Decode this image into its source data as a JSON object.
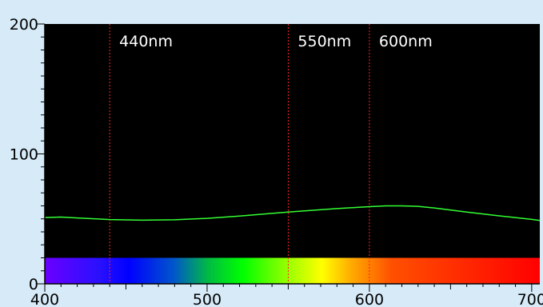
{
  "chart_data": {
    "type": "line",
    "title": "",
    "xlabel": "",
    "ylabel": "",
    "xlim": [
      400,
      705
    ],
    "ylim": [
      0,
      200
    ],
    "x_ticks": [
      400,
      500,
      600,
      700
    ],
    "x_tick_labels": [
      "400",
      "500",
      "600",
      "700"
    ],
    "y_ticks": [
      0,
      100,
      200
    ],
    "y_tick_labels": [
      "0",
      "100",
      "200"
    ],
    "grid": false,
    "background": "#000000",
    "spectrum_band": {
      "y_from": 0,
      "y_to": 20,
      "x_from": 400,
      "x_to": 705
    },
    "markers": [
      {
        "x": 440,
        "label": "440nm"
      },
      {
        "x": 550,
        "label": "550nm"
      },
      {
        "x": 600,
        "label": "600nm"
      }
    ],
    "series": [
      {
        "color": "#33ff33",
        "x": [
          400,
          410,
          420,
          440,
          460,
          480,
          500,
          520,
          540,
          550,
          560,
          580,
          600,
          610,
          620,
          630,
          640,
          660,
          680,
          700,
          705
        ],
        "y": [
          51,
          51.4,
          50.7,
          49.5,
          49,
          49.3,
          50.4,
          52.2,
          54.2,
          55.2,
          56.1,
          57.9,
          59.4,
          60,
          60,
          59.6,
          58.4,
          55.2,
          52.3,
          49.6,
          48.8
        ]
      }
    ]
  },
  "colors": {
    "page_background": "#d6eaf8",
    "plot_background": "#000000",
    "marker_line": "#ff2020",
    "axis": "#000000"
  }
}
